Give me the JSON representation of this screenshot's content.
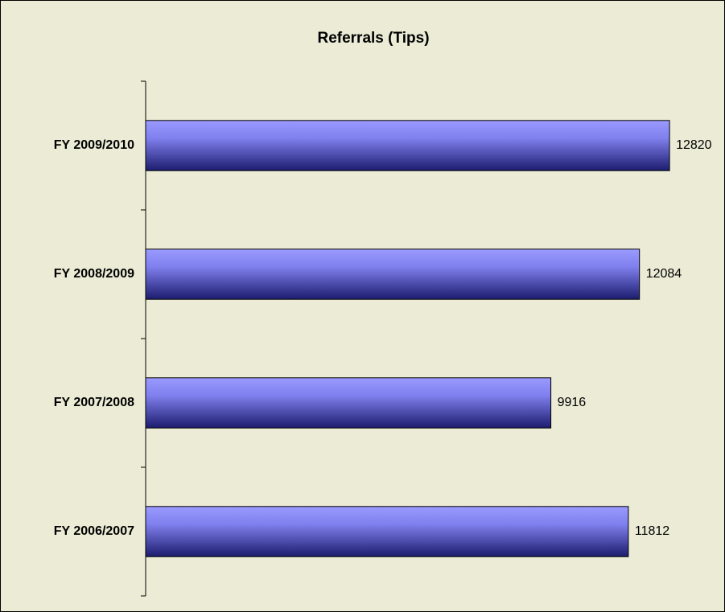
{
  "chart_data": {
    "type": "bar",
    "orientation": "horizontal",
    "title": "Referrals (Tips)",
    "categories": [
      "FY 2009/2010",
      "FY 2008/2009",
      "FY 2007/2008",
      "FY 2006/2007"
    ],
    "values": [
      12820,
      12084,
      9916,
      11812
    ],
    "color": "#9999ff",
    "xlim": [
      0,
      14000
    ]
  }
}
